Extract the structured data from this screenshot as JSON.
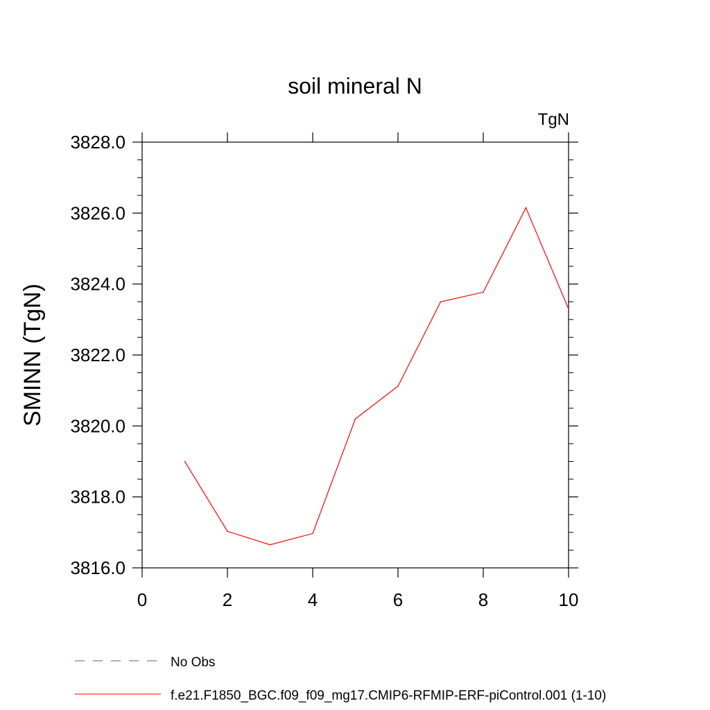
{
  "chart_data": {
    "type": "line",
    "title": "soil mineral N",
    "units_label": "TgN",
    "ylabel": "SMINN  (TgN)",
    "xlabel": "",
    "xlim": [
      0,
      10
    ],
    "ylim": [
      3816.0,
      3828.0
    ],
    "x_ticks": [
      "0",
      "2",
      "4",
      "6",
      "8",
      "10"
    ],
    "y_ticks": [
      "3816.0",
      "3818.0",
      "3820.0",
      "3822.0",
      "3824.0",
      "3826.0",
      "3828.0"
    ],
    "grid": false,
    "legend_position": "bottom",
    "series": [
      {
        "name": "f.e21.F1850_BGC.f09_f09_mg17.CMIP6-RFMIP-ERF-piControl.001 (1-10)",
        "color": "#ff0000",
        "style": "solid",
        "x": [
          1,
          2,
          3,
          4,
          5,
          6,
          7,
          8,
          9,
          10
        ],
        "values": [
          3819.0,
          3817.03,
          3816.65,
          3816.97,
          3820.2,
          3821.12,
          3823.5,
          3823.77,
          3826.15,
          3823.3
        ]
      }
    ],
    "legend": [
      {
        "label": "No Obs",
        "color": "#5555aa",
        "style": "dashed"
      },
      {
        "label": "f.e21.F1850_BGC.f09_f09_mg17.CMIP6-RFMIP-ERF-piControl.001 (1-10)",
        "color": "#ff0000",
        "style": "solid"
      }
    ]
  }
}
